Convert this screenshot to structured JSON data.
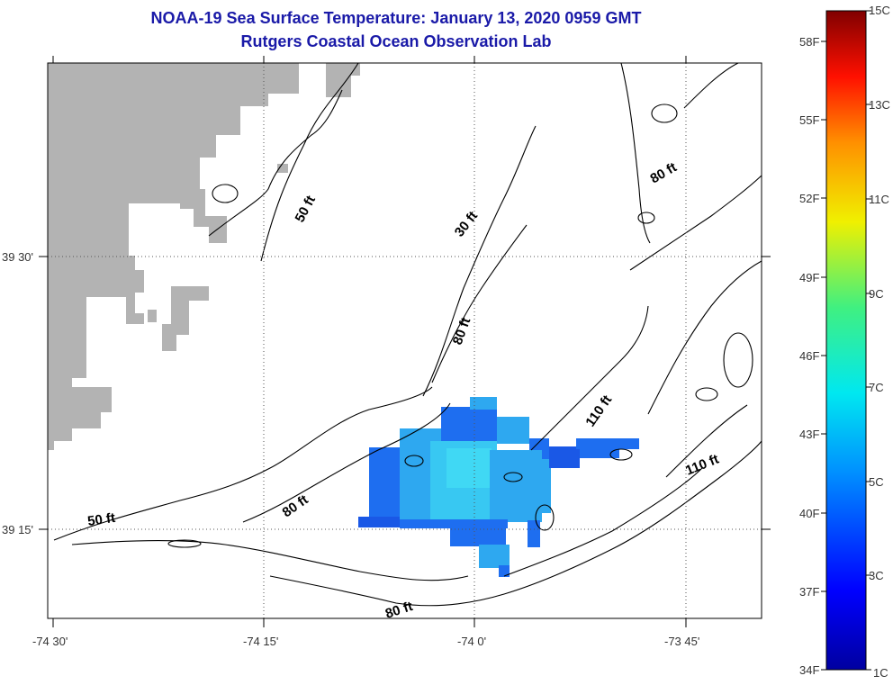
{
  "title": {
    "line1": "NOAA-19 Sea Surface Temperature:  January 13, 2020 0959 GMT",
    "line2": "Rutgers Coastal Ocean Observation Lab"
  },
  "axes": {
    "x_ticks": [
      "-74 30'",
      "-74 15'",
      "-74 0'",
      "-73 45'"
    ],
    "y_ticks": [
      "39 30'",
      "39 15'"
    ]
  },
  "depth_labels": [
    "50 ft",
    "30 ft",
    "80 ft",
    "80 ft",
    "110 ft",
    "110 ft",
    "50 ft",
    "80 ft",
    "80 ft"
  ],
  "colorbar": {
    "fahrenheit_labels": [
      "58F",
      "55F",
      "52F",
      "49F",
      "46F",
      "43F",
      "40F",
      "37F",
      "34F"
    ],
    "celsius_labels": [
      "15C",
      "13C",
      "11C",
      "9C",
      "7C",
      "5C",
      "3C",
      "1C"
    ],
    "range_c": [
      1,
      15
    ]
  },
  "colors": {
    "land": "#b3b3b3",
    "title": "#1a1aa8",
    "sst_pixels": [
      "#1e6ef0",
      "#2ea8f0",
      "#38c8f2",
      "#40d8f4",
      "#1a58e6"
    ]
  }
}
